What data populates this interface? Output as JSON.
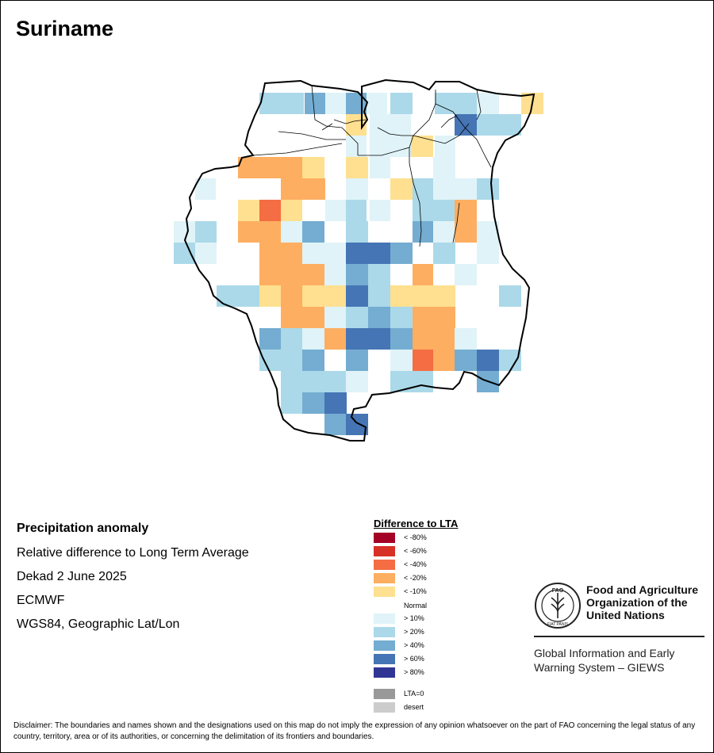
{
  "map": {
    "title": "Suriname"
  },
  "info": {
    "heading": "Precipitation anomaly",
    "line1": "Relative difference to Long Term Average",
    "line2": "Dekad 2 June 2025",
    "line3": "ECMWF",
    "line4": "WGS84, Geographic Lat/Lon"
  },
  "legend": {
    "title": "Difference to LTA",
    "normal_label": "Normal",
    "items": [
      {
        "label": "< -80%",
        "color": "#a50026"
      },
      {
        "label": "< -60%",
        "color": "#d73027"
      },
      {
        "label": "< -40%",
        "color": "#f46d43"
      },
      {
        "label": "< -20%",
        "color": "#fdae61"
      },
      {
        "label": "< -10%",
        "color": "#fee090"
      },
      {
        "label": "> 10%",
        "color": "#e0f3f8"
      },
      {
        "label": "> 20%",
        "color": "#abd9e9"
      },
      {
        "label": "> 40%",
        "color": "#74add1"
      },
      {
        "label": "> 60%",
        "color": "#4575b4"
      },
      {
        "label": "> 80%",
        "color": "#313695"
      },
      {
        "label": "LTA=0",
        "color": "#999999"
      },
      {
        "label": "desert",
        "color": "#cccccc"
      }
    ]
  },
  "logo": {
    "org_line1": "Food and Agriculture",
    "org_line2": "Organization of the",
    "org_line3": "United Nations",
    "system_line1": "Global Information and Early",
    "system_line2": "Warning System – GIEWS",
    "emblem_text": "FAO",
    "motto": "FIAT PANIS"
  },
  "disclaimer": {
    "text": "Disclaimer: The boundaries and names shown and the designations used on this map do not imply the expression of any opinion whatsoever on the part of FAO concerning the legal status of any country, territory, area or of its authorities, or concerning the delimitation of its frontiers and boundaries."
  }
}
